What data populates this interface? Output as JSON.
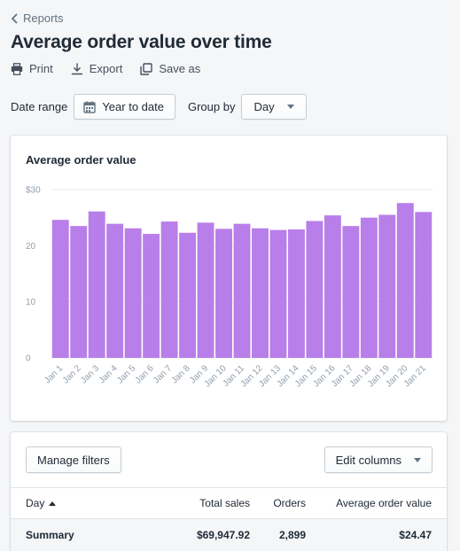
{
  "breadcrumb": {
    "label": "Reports"
  },
  "page": {
    "title": "Average order value over time"
  },
  "actions": [
    {
      "label": "Print",
      "icon": "print-icon"
    },
    {
      "label": "Export",
      "icon": "export-icon"
    },
    {
      "label": "Save as",
      "icon": "save-as-icon"
    }
  ],
  "filters": {
    "date_range_label": "Date range",
    "date_range_value": "Year to date",
    "group_by_label": "Group by",
    "group_by_value": "Day"
  },
  "chart": {
    "title": "Average order value",
    "bar_color": "#b87ee9",
    "grid_color": "#e4e7eb"
  },
  "chart_data": {
    "type": "bar",
    "title": "Average order value",
    "categories": [
      "Jan 1",
      "Jan 2",
      "Jan 3",
      "Jan 4",
      "Jan 5",
      "Jan 6",
      "Jan 7",
      "Jan 8",
      "Jan 9",
      "Jan 10",
      "Jan 11",
      "Jan 12",
      "Jan 13",
      "Jan 14",
      "Jan 15",
      "Jan 16",
      "Jan 17",
      "Jan 18",
      "Jan 19",
      "Jan 20",
      "Jan 21"
    ],
    "values": [
      24.6,
      23.5,
      26.1,
      23.9,
      23.1,
      22.1,
      24.3,
      22.3,
      24.1,
      23.0,
      23.9,
      23.1,
      22.8,
      22.9,
      24.4,
      25.4,
      23.5,
      25.0,
      25.5,
      27.6,
      26.0
    ],
    "y_ticks": [
      "$30",
      "20",
      "10",
      "0"
    ],
    "y_tick_values": [
      30,
      20,
      10,
      0
    ],
    "ylim": [
      0,
      30
    ],
    "grid": true
  },
  "table": {
    "manage_filters_label": "Manage filters",
    "edit_columns_label": "Edit columns",
    "headers": {
      "day": "Day",
      "total_sales": "Total sales",
      "orders": "Orders",
      "aov": "Average order value"
    },
    "summary": {
      "label": "Summary",
      "total_sales": "$69,947.92",
      "orders": "2,899",
      "aov": "$24.47"
    }
  }
}
